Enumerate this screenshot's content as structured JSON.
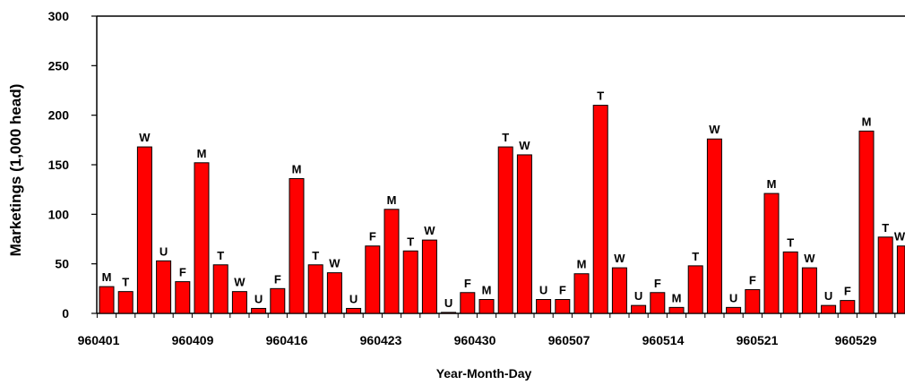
{
  "chart_data": {
    "type": "bar",
    "title": "",
    "xlabel": "Year-Month-Day",
    "ylabel": "Marketings (1,000 head)",
    "ylim": [
      0,
      300
    ],
    "yticks": [
      "0",
      "50",
      "100",
      "150",
      "200",
      "250",
      "300"
    ],
    "xtick_labels": [
      "960401",
      "960409",
      "960416",
      "960423",
      "960430",
      "960507",
      "960514",
      "960521",
      "960529"
    ],
    "grid": false,
    "colors": {
      "bar": "#ff0000",
      "stroke": "#000000"
    },
    "bars": [
      {
        "label": "M",
        "value": 27
      },
      {
        "label": "T",
        "value": 22
      },
      {
        "label": "W",
        "value": 168
      },
      {
        "label": "U",
        "value": 53
      },
      {
        "label": "F",
        "value": 32
      },
      {
        "label": "M",
        "value": 152
      },
      {
        "label": "T",
        "value": 49
      },
      {
        "label": "W",
        "value": 22
      },
      {
        "label": "U",
        "value": 5
      },
      {
        "label": "F",
        "value": 25
      },
      {
        "label": "M",
        "value": 136
      },
      {
        "label": "T",
        "value": 49
      },
      {
        "label": "W",
        "value": 41
      },
      {
        "label": "U",
        "value": 5
      },
      {
        "label": "F",
        "value": 68
      },
      {
        "label": "M",
        "value": 105
      },
      {
        "label": "T",
        "value": 63
      },
      {
        "label": "W",
        "value": 74
      },
      {
        "label": "U",
        "value": 1
      },
      {
        "label": "F",
        "value": 21
      },
      {
        "label": "M",
        "value": 14
      },
      {
        "label": "T",
        "value": 168
      },
      {
        "label": "W",
        "value": 160
      },
      {
        "label": "U",
        "value": 14
      },
      {
        "label": "F",
        "value": 14
      },
      {
        "label": "M",
        "value": 40
      },
      {
        "label": "T",
        "value": 210
      },
      {
        "label": "W",
        "value": 46
      },
      {
        "label": "U",
        "value": 8
      },
      {
        "label": "F",
        "value": 21
      },
      {
        "label": "M",
        "value": 6
      },
      {
        "label": "T",
        "value": 48
      },
      {
        "label": "W",
        "value": 176
      },
      {
        "label": "U",
        "value": 6
      },
      {
        "label": "F",
        "value": 24
      },
      {
        "label": "M",
        "value": 121
      },
      {
        "label": "T",
        "value": 62
      },
      {
        "label": "W",
        "value": 46
      },
      {
        "label": "U",
        "value": 8
      },
      {
        "label": "F",
        "value": 13
      },
      {
        "label": "M",
        "value": 184
      },
      {
        "label": "T",
        "value": 77
      },
      {
        "label": "W",
        "value": 68
      }
    ]
  }
}
